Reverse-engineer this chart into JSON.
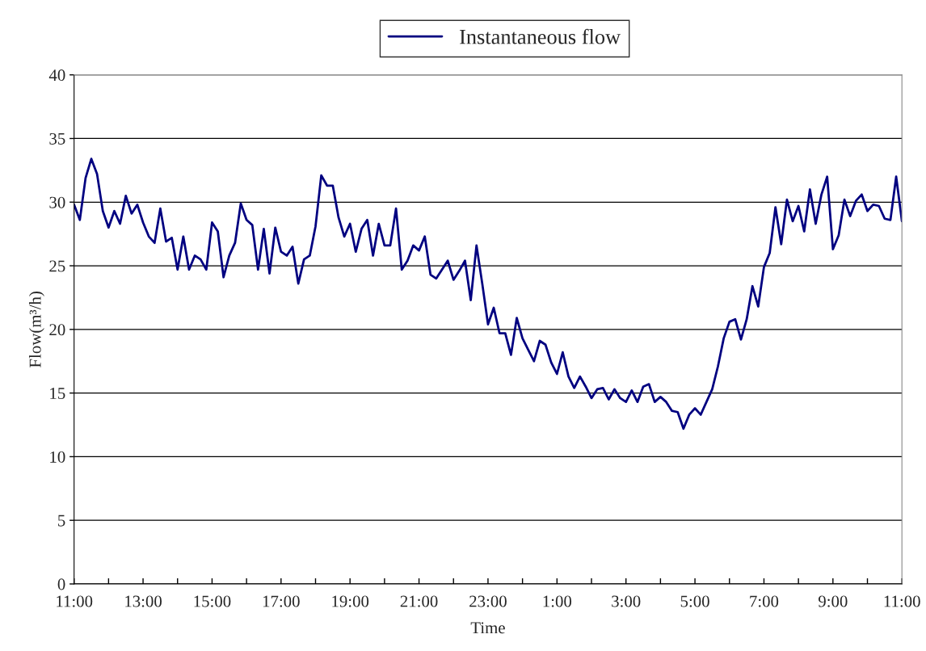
{
  "chart_data": {
    "type": "line",
    "xlabel": "Time",
    "ylabel": "Flow(m³/h)",
    "x": [
      "2000-01-01T11:00",
      "2000-01-01T11:10",
      "2000-01-01T11:20",
      "2000-01-01T11:30",
      "2000-01-01T11:40",
      "2000-01-01T11:50",
      "2000-01-01T12:00",
      "2000-01-01T12:10",
      "2000-01-01T12:20",
      "2000-01-01T12:30",
      "2000-01-01T12:40",
      "2000-01-01T12:50",
      "2000-01-01T13:00",
      "2000-01-01T13:10",
      "2000-01-01T13:20",
      "2000-01-01T13:30",
      "2000-01-01T13:40",
      "2000-01-01T13:50",
      "2000-01-01T14:00",
      "2000-01-01T14:10",
      "2000-01-01T14:20",
      "2000-01-01T14:30",
      "2000-01-01T14:40",
      "2000-01-01T14:50",
      "2000-01-01T15:00",
      "2000-01-01T15:10",
      "2000-01-01T15:20",
      "2000-01-01T15:30",
      "2000-01-01T15:40",
      "2000-01-01T15:50",
      "2000-01-01T16:00",
      "2000-01-01T16:10",
      "2000-01-01T16:20",
      "2000-01-01T16:30",
      "2000-01-01T16:40",
      "2000-01-01T16:50",
      "2000-01-01T17:00",
      "2000-01-01T17:10",
      "2000-01-01T17:20",
      "2000-01-01T17:30",
      "2000-01-01T17:40",
      "2000-01-01T17:50",
      "2000-01-01T18:00",
      "2000-01-01T18:10",
      "2000-01-01T18:20",
      "2000-01-01T18:30",
      "2000-01-01T18:40",
      "2000-01-01T18:50",
      "2000-01-01T19:00",
      "2000-01-01T19:10",
      "2000-01-01T19:20",
      "2000-01-01T19:30",
      "2000-01-01T19:40",
      "2000-01-01T19:50",
      "2000-01-01T20:00",
      "2000-01-01T20:10",
      "2000-01-01T20:20",
      "2000-01-01T20:30",
      "2000-01-01T20:40",
      "2000-01-01T20:50",
      "2000-01-01T21:00",
      "2000-01-01T21:10",
      "2000-01-01T21:20",
      "2000-01-01T21:30",
      "2000-01-01T21:40",
      "2000-01-01T21:50",
      "2000-01-01T22:00",
      "2000-01-01T22:10",
      "2000-01-01T22:20",
      "2000-01-01T22:30",
      "2000-01-01T22:40",
      "2000-01-01T22:50",
      "2000-01-01T23:00",
      "2000-01-01T23:10",
      "2000-01-01T23:20",
      "2000-01-01T23:30",
      "2000-01-01T23:40",
      "2000-01-01T23:50",
      "2000-01-02T00:00",
      "2000-01-02T00:10",
      "2000-01-02T00:20",
      "2000-01-02T00:30",
      "2000-01-02T00:40",
      "2000-01-02T00:50",
      "2000-01-02T01:00",
      "2000-01-02T01:10",
      "2000-01-02T01:20",
      "2000-01-02T01:30",
      "2000-01-02T01:40",
      "2000-01-02T01:50",
      "2000-01-02T02:00",
      "2000-01-02T02:10",
      "2000-01-02T02:20",
      "2000-01-02T02:30",
      "2000-01-02T02:40",
      "2000-01-02T02:50",
      "2000-01-02T03:00",
      "2000-01-02T03:10",
      "2000-01-02T03:20",
      "2000-01-02T03:30",
      "2000-01-02T03:40",
      "2000-01-02T03:50",
      "2000-01-02T04:00",
      "2000-01-02T04:10",
      "2000-01-02T04:20",
      "2000-01-02T04:30",
      "2000-01-02T04:40",
      "2000-01-02T04:50",
      "2000-01-02T05:00",
      "2000-01-02T05:10",
      "2000-01-02T05:20",
      "2000-01-02T05:30",
      "2000-01-02T05:40",
      "2000-01-02T05:50",
      "2000-01-02T06:00",
      "2000-01-02T06:10",
      "2000-01-02T06:20",
      "2000-01-02T06:30",
      "2000-01-02T06:40",
      "2000-01-02T06:50",
      "2000-01-02T07:00",
      "2000-01-02T07:10",
      "2000-01-02T07:20",
      "2000-01-02T07:30",
      "2000-01-02T07:40",
      "2000-01-02T07:50",
      "2000-01-02T08:00",
      "2000-01-02T08:10",
      "2000-01-02T08:20",
      "2000-01-02T08:30",
      "2000-01-02T08:40",
      "2000-01-02T08:50",
      "2000-01-02T09:00",
      "2000-01-02T09:10",
      "2000-01-02T09:20",
      "2000-01-02T09:30",
      "2000-01-02T09:40",
      "2000-01-02T09:50",
      "2000-01-02T10:00",
      "2000-01-02T10:10",
      "2000-01-02T10:20",
      "2000-01-02T10:30",
      "2000-01-02T10:40",
      "2000-01-02T10:50",
      "2000-01-02T11:00"
    ],
    "series": [
      {
        "name": "Instantaneous flow",
        "color": "#000080",
        "values": [
          29.8,
          28.6,
          31.9,
          33.4,
          32.2,
          29.3,
          28.0,
          29.3,
          28.3,
          30.5,
          29.1,
          29.8,
          28.4,
          27.3,
          26.8,
          29.5,
          26.9,
          27.2,
          24.7,
          27.3,
          24.7,
          25.8,
          25.5,
          24.7,
          28.4,
          27.7,
          24.1,
          25.8,
          26.8,
          29.9,
          28.6,
          28.2,
          24.7,
          27.9,
          24.4,
          28.0,
          26.1,
          25.8,
          26.5,
          23.6,
          25.5,
          25.8,
          28.1,
          32.1,
          31.3,
          31.3,
          28.8,
          27.3,
          28.3,
          26.1,
          27.9,
          28.6,
          25.8,
          28.3,
          26.6,
          26.6,
          29.5,
          24.7,
          25.4,
          26.6,
          26.2,
          27.3,
          24.3,
          24.0,
          24.7,
          25.4,
          23.9,
          24.6,
          25.4,
          22.3,
          26.6,
          23.6,
          20.4,
          21.7,
          19.7,
          19.7,
          18.0,
          20.9,
          19.3,
          18.4,
          17.5,
          19.1,
          18.8,
          17.4,
          16.5,
          18.2,
          16.3,
          15.4,
          16.3,
          15.5,
          14.6,
          15.3,
          15.4,
          14.5,
          15.3,
          14.6,
          14.3,
          15.2,
          14.3,
          15.5,
          15.7,
          14.3,
          14.7,
          14.3,
          13.6,
          13.5,
          12.2,
          13.3,
          13.8,
          13.3,
          14.3,
          15.3,
          17.1,
          19.3,
          20.6,
          20.8,
          19.2,
          20.8,
          23.4,
          21.8,
          24.9,
          26.0,
          29.6,
          26.7,
          30.2,
          28.5,
          29.7,
          27.7,
          31.0,
          28.3,
          30.6,
          32.0,
          26.3,
          27.4,
          30.2,
          28.9,
          30.1,
          30.6,
          29.3,
          29.8,
          29.7,
          28.7,
          28.6,
          32.0,
          28.5
        ]
      }
    ],
    "xlim": [
      "2000-01-01T11:00",
      "2000-01-02T11:00"
    ],
    "xticks": [
      {
        "value": "2000-01-01T11:00",
        "label": "11:00"
      },
      {
        "value": "2000-01-01T12:00",
        "label": null
      },
      {
        "value": "2000-01-01T13:00",
        "label": "13:00"
      },
      {
        "value": "2000-01-01T14:00",
        "label": null
      },
      {
        "value": "2000-01-01T15:00",
        "label": "15:00"
      },
      {
        "value": "2000-01-01T16:00",
        "label": null
      },
      {
        "value": "2000-01-01T17:00",
        "label": "17:00"
      },
      {
        "value": "2000-01-01T18:00",
        "label": null
      },
      {
        "value": "2000-01-01T19:00",
        "label": "19:00"
      },
      {
        "value": "2000-01-01T20:00",
        "label": null
      },
      {
        "value": "2000-01-01T21:00",
        "label": "21:00"
      },
      {
        "value": "2000-01-01T22:00",
        "label": null
      },
      {
        "value": "2000-01-01T23:00",
        "label": "23:00"
      },
      {
        "value": "2000-01-02T00:00",
        "label": null
      },
      {
        "value": "2000-01-02T01:00",
        "label": "1:00"
      },
      {
        "value": "2000-01-02T02:00",
        "label": null
      },
      {
        "value": "2000-01-02T03:00",
        "label": "3:00"
      },
      {
        "value": "2000-01-02T04:00",
        "label": null
      },
      {
        "value": "2000-01-02T05:00",
        "label": "5:00"
      },
      {
        "value": "2000-01-02T06:00",
        "label": null
      },
      {
        "value": "2000-01-02T07:00",
        "label": "7:00"
      },
      {
        "value": "2000-01-02T08:00",
        "label": null
      },
      {
        "value": "2000-01-02T09:00",
        "label": "9:00"
      },
      {
        "value": "2000-01-02T10:00",
        "label": null
      },
      {
        "value": "2000-01-02T11:00",
        "label": "11:00"
      }
    ],
    "ylim": [
      0,
      40
    ],
    "yticks": [
      0,
      5,
      10,
      15,
      20,
      25,
      30,
      35,
      40
    ],
    "grid": "y",
    "legend": "top",
    "marker": "none",
    "line_style": "solid"
  }
}
